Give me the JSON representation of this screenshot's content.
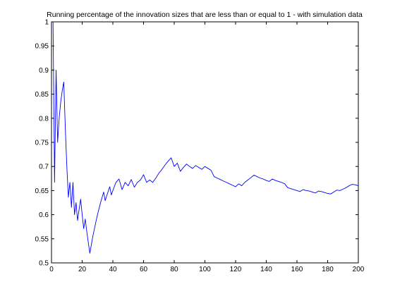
{
  "chart_data": {
    "type": "line",
    "title": "Running percentage of the innovation sizes that are less than or equal to 1 - with simulation data",
    "xlabel": "",
    "ylabel": "",
    "xlim": [
      0,
      200
    ],
    "ylim": [
      0.5,
      1.0
    ],
    "x_ticks": [
      0,
      20,
      40,
      60,
      80,
      100,
      120,
      140,
      160,
      180,
      200
    ],
    "y_ticks": [
      0.5,
      0.55,
      0.6,
      0.65,
      0.7,
      0.75,
      0.8,
      0.85,
      0.9,
      0.95,
      1
    ],
    "x_tick_labels": [
      "0",
      "20",
      "40",
      "60",
      "80",
      "100",
      "120",
      "140",
      "160",
      "180",
      "200"
    ],
    "y_tick_labels": [
      "0.5",
      "0.55",
      "0.6",
      "0.65",
      "0.7",
      "0.75",
      "0.8",
      "0.85",
      "0.9",
      "0.95",
      "1"
    ],
    "grid": false,
    "series": [
      {
        "color": "#0000ff",
        "x": [
          1,
          2,
          3,
          4,
          5,
          6,
          7,
          8,
          9,
          10,
          11,
          12,
          13,
          14,
          15,
          16,
          17,
          18,
          19,
          20,
          21,
          22,
          23,
          24,
          25,
          26,
          27,
          28,
          29,
          30,
          31,
          32,
          33,
          34,
          35,
          36,
          37,
          38,
          39,
          40,
          42,
          44,
          46,
          48,
          50,
          52,
          54,
          56,
          58,
          60,
          62,
          64,
          66,
          68,
          70,
          72,
          74,
          76,
          78,
          80,
          82,
          84,
          86,
          88,
          90,
          92,
          94,
          96,
          98,
          100,
          102,
          104,
          106,
          108,
          110,
          112,
          114,
          116,
          118,
          120,
          122,
          124,
          126,
          128,
          130,
          132,
          134,
          136,
          138,
          140,
          142,
          144,
          146,
          148,
          150,
          152,
          154,
          156,
          158,
          160,
          162,
          164,
          166,
          168,
          170,
          172,
          174,
          176,
          178,
          180,
          182,
          184,
          186,
          188,
          190,
          192,
          194,
          196,
          198,
          200
        ],
        "values": [
          1.0,
          0.667,
          0.9,
          0.75,
          0.8,
          0.833,
          0.857,
          0.875,
          0.78,
          0.7,
          0.636,
          0.667,
          0.615,
          0.667,
          0.6,
          0.625,
          0.588,
          0.611,
          0.632,
          0.6,
          0.571,
          0.591,
          0.565,
          0.542,
          0.52,
          0.538,
          0.556,
          0.571,
          0.586,
          0.6,
          0.613,
          0.625,
          0.636,
          0.647,
          0.629,
          0.639,
          0.649,
          0.658,
          0.641,
          0.65,
          0.667,
          0.674,
          0.652,
          0.667,
          0.66,
          0.673,
          0.657,
          0.667,
          0.672,
          0.683,
          0.667,
          0.672,
          0.667,
          0.676,
          0.686,
          0.694,
          0.703,
          0.711,
          0.718,
          0.7,
          0.707,
          0.69,
          0.698,
          0.705,
          0.7,
          0.696,
          0.702,
          0.698,
          0.694,
          0.7,
          0.696,
          0.692,
          0.679,
          0.676,
          0.673,
          0.67,
          0.667,
          0.664,
          0.661,
          0.658,
          0.664,
          0.66,
          0.667,
          0.672,
          0.677,
          0.682,
          0.679,
          0.676,
          0.674,
          0.671,
          0.669,
          0.674,
          0.671,
          0.669,
          0.667,
          0.664,
          0.656,
          0.654,
          0.652,
          0.65,
          0.648,
          0.652,
          0.65,
          0.649,
          0.647,
          0.645,
          0.649,
          0.648,
          0.646,
          0.644,
          0.643,
          0.647,
          0.651,
          0.65,
          0.653,
          0.656,
          0.66,
          0.663,
          0.662,
          0.66
        ]
      }
    ]
  }
}
